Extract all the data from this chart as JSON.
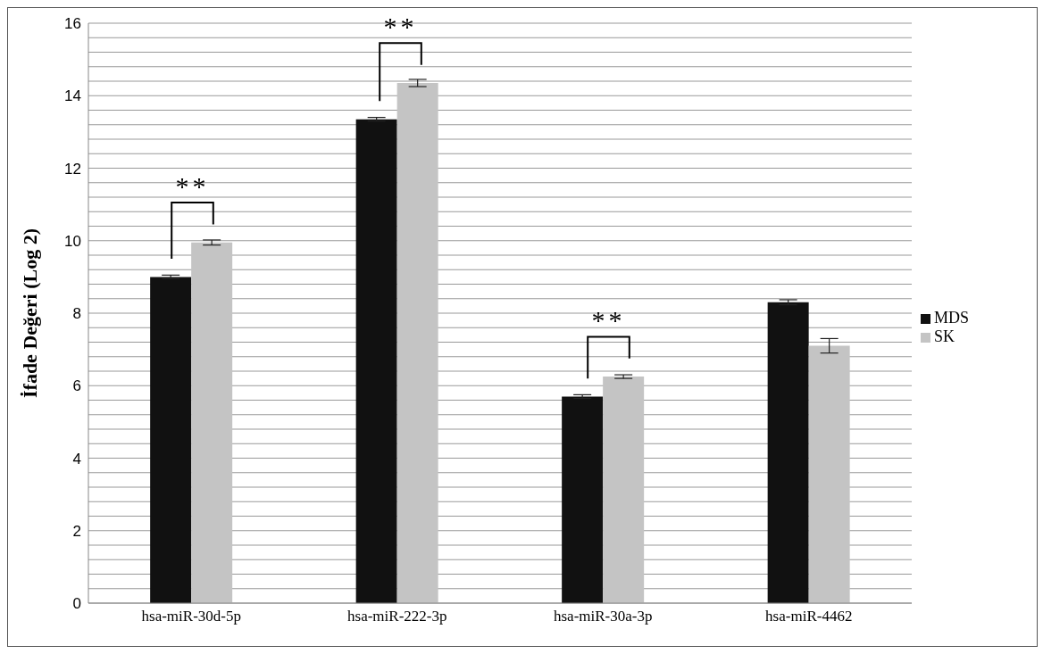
{
  "chart_data": {
    "type": "bar",
    "ylabel": "İfade Değeri (Log 2)",
    "categories": [
      "hsa-miR-30d-5p",
      "hsa-miR-222-3p",
      "hsa-miR-30a-3p",
      "hsa-miR-4462"
    ],
    "series": [
      {
        "name": "MDS",
        "color": "#111111",
        "values": [
          9.0,
          13.35,
          5.7,
          8.3
        ],
        "errors": [
          0.05,
          0.05,
          0.05,
          0.07
        ]
      },
      {
        "name": "SK",
        "color": "#c4c4c4",
        "values": [
          9.95,
          14.35,
          6.25,
          7.1
        ],
        "errors": [
          0.07,
          0.1,
          0.05,
          0.2
        ]
      }
    ],
    "ylim": [
      0,
      16
    ],
    "yticks": [
      0,
      {
        "value": 0.4,
        "label": null
      },
      {
        "value": 0.8,
        "label": null
      },
      {
        "value": 1.2,
        "label": null
      },
      {
        "value": 1.6,
        "label": null
      },
      2,
      {
        "value": 2.4,
        "label": null
      },
      {
        "value": 2.8,
        "label": null
      },
      {
        "value": 3.2,
        "label": null
      },
      {
        "value": 3.6,
        "label": null
      },
      4,
      {
        "value": 4.4,
        "label": null
      },
      {
        "value": 4.8,
        "label": null
      },
      {
        "value": 5.2,
        "label": null
      },
      {
        "value": 5.6,
        "label": null
      },
      6,
      {
        "value": 6.4,
        "label": null
      },
      {
        "value": 6.8,
        "label": null
      },
      {
        "value": 7.2,
        "label": null
      },
      {
        "value": 7.6,
        "label": null
      },
      8,
      {
        "value": 8.4,
        "label": null
      },
      {
        "value": 8.8,
        "label": null
      },
      {
        "value": 9.2,
        "label": null
      },
      {
        "value": 9.6,
        "label": null
      },
      10,
      {
        "value": 10.4,
        "label": null
      },
      {
        "value": 10.8,
        "label": null
      },
      {
        "value": 11.2,
        "label": null
      },
      {
        "value": 11.6,
        "label": null
      },
      12,
      {
        "value": 12.4,
        "label": null
      },
      {
        "value": 12.8,
        "label": null
      },
      {
        "value": 13.2,
        "label": null
      },
      {
        "value": 13.6,
        "label": null
      },
      14,
      {
        "value": 14.4,
        "label": null
      },
      {
        "value": 14.8,
        "label": null
      },
      {
        "value": 15.2,
        "label": null
      },
      {
        "value": 15.6,
        "label": null
      },
      16
    ],
    "grid": "y",
    "legend": "right",
    "annotations": [
      "**",
      "**",
      "**"
    ]
  }
}
